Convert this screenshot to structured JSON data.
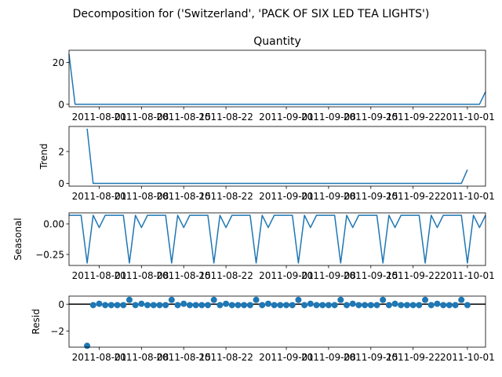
{
  "figure": {
    "suptitle": "Decomposition for ('Switzerland', 'PACK OF SIX LED TEA LIGHTS')"
  },
  "colors": {
    "line": "#1f77b4",
    "axis": "#000000"
  },
  "chart_data": [
    {
      "type": "line",
      "title": "Quantity",
      "ylabel": "",
      "xlabel": "",
      "ylim": [
        -1.2,
        25.8
      ],
      "yticks": [
        0,
        20
      ],
      "x_range": [
        "2011-07-27",
        "2011-10-04"
      ],
      "xticks": [
        "2011-08-01",
        "2011-08-08",
        "2011-08-15",
        "2011-08-22",
        "2011-09-01",
        "2011-09-08",
        "2011-09-15",
        "2011-09-22",
        "2011-10-01"
      ],
      "x": [
        "2011-07-27",
        "2011-07-28",
        "2011-07-29",
        "2011-07-30",
        "2011-07-31",
        "2011-08-01",
        "2011-08-02",
        "2011-08-03",
        "2011-08-04",
        "2011-08-05",
        "2011-08-06",
        "2011-08-07",
        "2011-08-08",
        "2011-08-09",
        "2011-08-10",
        "2011-08-11",
        "2011-08-12",
        "2011-08-13",
        "2011-08-14",
        "2011-08-15",
        "2011-08-16",
        "2011-08-17",
        "2011-08-18",
        "2011-08-19",
        "2011-08-20",
        "2011-08-21",
        "2011-08-22",
        "2011-08-23",
        "2011-08-24",
        "2011-08-25",
        "2011-08-26",
        "2011-08-27",
        "2011-08-28",
        "2011-08-29",
        "2011-08-30",
        "2011-08-31",
        "2011-09-01",
        "2011-09-02",
        "2011-09-03",
        "2011-09-04",
        "2011-09-05",
        "2011-09-06",
        "2011-09-07",
        "2011-09-08",
        "2011-09-09",
        "2011-09-10",
        "2011-09-11",
        "2011-09-12",
        "2011-09-13",
        "2011-09-14",
        "2011-09-15",
        "2011-09-16",
        "2011-09-17",
        "2011-09-18",
        "2011-09-19",
        "2011-09-20",
        "2011-09-21",
        "2011-09-22",
        "2011-09-23",
        "2011-09-24",
        "2011-09-25",
        "2011-09-26",
        "2011-09-27",
        "2011-09-28",
        "2011-09-29",
        "2011-09-30",
        "2011-10-01",
        "2011-10-02",
        "2011-10-03",
        "2011-10-04"
      ],
      "values": [
        24,
        0,
        0,
        0,
        0,
        0,
        0,
        0,
        0,
        0,
        0,
        0,
        0,
        0,
        0,
        0,
        0,
        0,
        0,
        0,
        0,
        0,
        0,
        0,
        0,
        0,
        0,
        0,
        0,
        0,
        0,
        0,
        0,
        0,
        0,
        0,
        0,
        0,
        0,
        0,
        0,
        0,
        0,
        0,
        0,
        0,
        0,
        0,
        0,
        0,
        0,
        0,
        0,
        0,
        0,
        0,
        0,
        0,
        0,
        0,
        0,
        0,
        0,
        0,
        0,
        0,
        0,
        0,
        0,
        6
      ]
    },
    {
      "type": "line",
      "title": "",
      "ylabel": "Trend",
      "xlabel": "",
      "ylim": [
        -0.17,
        3.57
      ],
      "yticks": [
        0,
        2
      ],
      "x_range": [
        "2011-07-27",
        "2011-10-04"
      ],
      "xticks": [
        "2011-08-01",
        "2011-08-08",
        "2011-08-15",
        "2011-08-22",
        "2011-09-01",
        "2011-09-08",
        "2011-09-15",
        "2011-09-22",
        "2011-10-01"
      ],
      "x": [
        "2011-07-30",
        "2011-07-31",
        "2011-08-01",
        "2011-08-02",
        "2011-08-03",
        "2011-08-04",
        "2011-08-05",
        "2011-08-06",
        "2011-08-07",
        "2011-08-08",
        "2011-08-09",
        "2011-08-10",
        "2011-08-11",
        "2011-08-12",
        "2011-08-13",
        "2011-08-14",
        "2011-08-15",
        "2011-08-16",
        "2011-08-17",
        "2011-08-18",
        "2011-08-19",
        "2011-08-20",
        "2011-08-21",
        "2011-08-22",
        "2011-08-23",
        "2011-08-24",
        "2011-08-25",
        "2011-08-26",
        "2011-08-27",
        "2011-08-28",
        "2011-08-29",
        "2011-08-30",
        "2011-08-31",
        "2011-09-01",
        "2011-09-02",
        "2011-09-03",
        "2011-09-04",
        "2011-09-05",
        "2011-09-06",
        "2011-09-07",
        "2011-09-08",
        "2011-09-09",
        "2011-09-10",
        "2011-09-11",
        "2011-09-12",
        "2011-09-13",
        "2011-09-14",
        "2011-09-15",
        "2011-09-16",
        "2011-09-17",
        "2011-09-18",
        "2011-09-19",
        "2011-09-20",
        "2011-09-21",
        "2011-09-22",
        "2011-09-23",
        "2011-09-24",
        "2011-09-25",
        "2011-09-26",
        "2011-09-27",
        "2011-09-28",
        "2011-09-29",
        "2011-09-30",
        "2011-10-01"
      ],
      "values": [
        3.43,
        0,
        0,
        0,
        0,
        0,
        0,
        0,
        0,
        0,
        0,
        0,
        0,
        0,
        0,
        0,
        0,
        0,
        0,
        0,
        0,
        0,
        0,
        0,
        0,
        0,
        0,
        0,
        0,
        0,
        0,
        0,
        0,
        0,
        0,
        0,
        0,
        0,
        0,
        0,
        0,
        0,
        0,
        0,
        0,
        0,
        0,
        0,
        0,
        0,
        0,
        0,
        0,
        0,
        0,
        0,
        0,
        0,
        0,
        0,
        0,
        0,
        0,
        0.86
      ]
    },
    {
      "type": "line",
      "title": "",
      "ylabel": "Seasonal",
      "xlabel": "",
      "ylim": [
        -0.34,
        0.09
      ],
      "yticks": [
        -0.25,
        0.0
      ],
      "ytick_labels": [
        "−0.25",
        "0.00"
      ],
      "x_range": [
        "2011-07-27",
        "2011-10-04"
      ],
      "xticks": [
        "2011-08-01",
        "2011-08-08",
        "2011-08-15",
        "2011-08-22",
        "2011-09-01",
        "2011-09-08",
        "2011-09-15",
        "2011-09-22",
        "2011-10-01"
      ],
      "pattern_period": 7,
      "pattern_start": "2011-07-27",
      "pattern": [
        0.07,
        0.07,
        0.07,
        -0.32,
        0.07,
        -0.03,
        0.07
      ]
    },
    {
      "type": "scatter",
      "title": "",
      "ylabel": "Resid",
      "xlabel": "",
      "ylim": [
        -3.2,
        0.6
      ],
      "yticks": [
        -2,
        0
      ],
      "ytick_labels": [
        "−2",
        "0"
      ],
      "zero_line": true,
      "x_range": [
        "2011-07-27",
        "2011-10-04"
      ],
      "xticks": [
        "2011-08-01",
        "2011-08-08",
        "2011-08-15",
        "2011-08-22",
        "2011-09-01",
        "2011-09-08",
        "2011-09-15",
        "2011-09-22",
        "2011-10-01"
      ],
      "x": [
        "2011-07-30",
        "2011-07-31",
        "2011-08-01",
        "2011-08-02",
        "2011-08-03",
        "2011-08-04",
        "2011-08-05",
        "2011-08-06",
        "2011-08-07",
        "2011-08-08",
        "2011-08-09",
        "2011-08-10",
        "2011-08-11",
        "2011-08-12",
        "2011-08-13",
        "2011-08-14",
        "2011-08-15",
        "2011-08-16",
        "2011-08-17",
        "2011-08-18",
        "2011-08-19",
        "2011-08-20",
        "2011-08-21",
        "2011-08-22",
        "2011-08-23",
        "2011-08-24",
        "2011-08-25",
        "2011-08-26",
        "2011-08-27",
        "2011-08-28",
        "2011-08-29",
        "2011-08-30",
        "2011-08-31",
        "2011-09-01",
        "2011-09-02",
        "2011-09-03",
        "2011-09-04",
        "2011-09-05",
        "2011-09-06",
        "2011-09-07",
        "2011-09-08",
        "2011-09-09",
        "2011-09-10",
        "2011-09-11",
        "2011-09-12",
        "2011-09-13",
        "2011-09-14",
        "2011-09-15",
        "2011-09-16",
        "2011-09-17",
        "2011-09-18",
        "2011-09-19",
        "2011-09-20",
        "2011-09-21",
        "2011-09-22",
        "2011-09-23",
        "2011-09-24",
        "2011-09-25",
        "2011-09-26",
        "2011-09-27",
        "2011-09-28",
        "2011-09-29",
        "2011-09-30",
        "2011-10-01"
      ],
      "values": [
        -3.1,
        -0.07,
        0.03,
        -0.07,
        -0.07,
        -0.07,
        -0.07,
        0.32,
        -0.07,
        0.03,
        -0.07,
        -0.07,
        -0.07,
        -0.07,
        0.32,
        -0.07,
        0.03,
        -0.07,
        -0.07,
        -0.07,
        -0.07,
        0.32,
        -0.07,
        0.03,
        -0.07,
        -0.07,
        -0.07,
        -0.07,
        0.32,
        -0.07,
        0.03,
        -0.07,
        -0.07,
        -0.07,
        -0.07,
        0.32,
        -0.07,
        0.03,
        -0.07,
        -0.07,
        -0.07,
        -0.07,
        0.32,
        -0.07,
        0.03,
        -0.07,
        -0.07,
        -0.07,
        -0.07,
        0.32,
        -0.07,
        0.03,
        -0.07,
        -0.07,
        -0.07,
        -0.07,
        0.32,
        -0.07,
        0.03,
        -0.07,
        -0.07,
        -0.07,
        0.32,
        -0.07
      ]
    }
  ]
}
